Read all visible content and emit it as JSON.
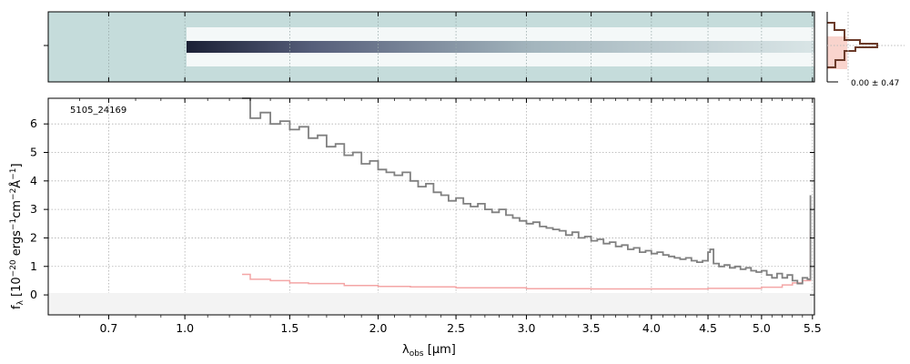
{
  "chart_data": {
    "type": "line",
    "object_id": "5105_24169",
    "xlabel_main": "λ",
    "xlabel_sub": "obs",
    "xlabel_unit": " [μm]",
    "ylabel_parts": [
      "f",
      "λ",
      " [10",
      "−20",
      " ergs",
      "−1",
      "cm",
      "−2",
      "Å",
      "−1",
      "]"
    ],
    "x_scale": "sqrt",
    "xlim": [
      0.5,
      5.52
    ],
    "ylim": [
      -0.7,
      6.9
    ],
    "x_ticks": [
      0.7,
      1.0,
      1.5,
      2.0,
      2.5,
      3.0,
      3.5,
      4.0,
      4.5,
      5.0,
      5.5
    ],
    "x_tick_labels": [
      "0.7",
      "1.0",
      "1.5",
      "2.0",
      "2.5",
      "3.0",
      "3.5",
      "4.0",
      "4.5",
      "5.0",
      "5.5"
    ],
    "y_ticks": [
      0,
      1,
      2,
      3,
      4,
      5,
      6
    ],
    "y_tick_labels": [
      "0",
      "1",
      "2",
      "3",
      "4",
      "5",
      "6"
    ],
    "grid": true,
    "flux": {
      "color": "#808080",
      "points": [
        [
          1.26,
          6.9
        ],
        [
          1.3,
          6.2
        ],
        [
          1.35,
          6.4
        ],
        [
          1.4,
          6.0
        ],
        [
          1.45,
          6.1
        ],
        [
          1.5,
          5.8
        ],
        [
          1.55,
          5.9
        ],
        [
          1.6,
          5.5
        ],
        [
          1.65,
          5.6
        ],
        [
          1.7,
          5.2
        ],
        [
          1.75,
          5.3
        ],
        [
          1.8,
          4.9
        ],
        [
          1.85,
          5.0
        ],
        [
          1.9,
          4.6
        ],
        [
          1.95,
          4.7
        ],
        [
          2.0,
          4.4
        ],
        [
          2.05,
          4.3
        ],
        [
          2.1,
          4.2
        ],
        [
          2.15,
          4.3
        ],
        [
          2.2,
          4.0
        ],
        [
          2.25,
          3.8
        ],
        [
          2.3,
          3.9
        ],
        [
          2.35,
          3.6
        ],
        [
          2.4,
          3.5
        ],
        [
          2.45,
          3.3
        ],
        [
          2.5,
          3.4
        ],
        [
          2.55,
          3.2
        ],
        [
          2.6,
          3.1
        ],
        [
          2.65,
          3.2
        ],
        [
          2.7,
          3.0
        ],
        [
          2.75,
          2.9
        ],
        [
          2.8,
          3.0
        ],
        [
          2.85,
          2.8
        ],
        [
          2.9,
          2.7
        ],
        [
          2.95,
          2.6
        ],
        [
          3.0,
          2.5
        ],
        [
          3.05,
          2.55
        ],
        [
          3.1,
          2.4
        ],
        [
          3.15,
          2.35
        ],
        [
          3.2,
          2.3
        ],
        [
          3.25,
          2.25
        ],
        [
          3.3,
          2.1
        ],
        [
          3.35,
          2.2
        ],
        [
          3.4,
          2.0
        ],
        [
          3.45,
          2.05
        ],
        [
          3.5,
          1.9
        ],
        [
          3.55,
          1.95
        ],
        [
          3.6,
          1.8
        ],
        [
          3.65,
          1.85
        ],
        [
          3.7,
          1.7
        ],
        [
          3.75,
          1.75
        ],
        [
          3.8,
          1.6
        ],
        [
          3.85,
          1.65
        ],
        [
          3.9,
          1.5
        ],
        [
          3.95,
          1.55
        ],
        [
          4.0,
          1.45
        ],
        [
          4.05,
          1.5
        ],
        [
          4.1,
          1.4
        ],
        [
          4.15,
          1.35
        ],
        [
          4.2,
          1.3
        ],
        [
          4.25,
          1.25
        ],
        [
          4.3,
          1.3
        ],
        [
          4.35,
          1.2
        ],
        [
          4.4,
          1.15
        ],
        [
          4.45,
          1.2
        ],
        [
          4.5,
          1.5
        ],
        [
          4.52,
          1.6
        ],
        [
          4.55,
          1.1
        ],
        [
          4.6,
          1.0
        ],
        [
          4.65,
          1.05
        ],
        [
          4.7,
          0.95
        ],
        [
          4.75,
          1.0
        ],
        [
          4.8,
          0.9
        ],
        [
          4.85,
          0.95
        ],
        [
          4.9,
          0.85
        ],
        [
          4.95,
          0.8
        ],
        [
          5.0,
          0.85
        ],
        [
          5.05,
          0.7
        ],
        [
          5.1,
          0.6
        ],
        [
          5.15,
          0.75
        ],
        [
          5.2,
          0.6
        ],
        [
          5.25,
          0.7
        ],
        [
          5.3,
          0.5
        ],
        [
          5.35,
          0.4
        ],
        [
          5.4,
          0.6
        ],
        [
          5.45,
          0.55
        ],
        [
          5.48,
          3.5
        ]
      ]
    },
    "error": {
      "color": "#f4a6a6",
      "points": [
        [
          1.26,
          0.72
        ],
        [
          1.3,
          0.55
        ],
        [
          1.4,
          0.5
        ],
        [
          1.5,
          0.42
        ],
        [
          1.6,
          0.4
        ],
        [
          1.8,
          0.33
        ],
        [
          2.0,
          0.3
        ],
        [
          2.2,
          0.28
        ],
        [
          2.5,
          0.25
        ],
        [
          3.0,
          0.22
        ],
        [
          3.5,
          0.21
        ],
        [
          4.0,
          0.21
        ],
        [
          4.5,
          0.23
        ],
        [
          5.0,
          0.27
        ],
        [
          5.2,
          0.35
        ],
        [
          5.3,
          0.42
        ],
        [
          5.4,
          0.5
        ],
        [
          5.48,
          2.3
        ]
      ]
    },
    "inset_label": "0.00 ± 0.47"
  }
}
